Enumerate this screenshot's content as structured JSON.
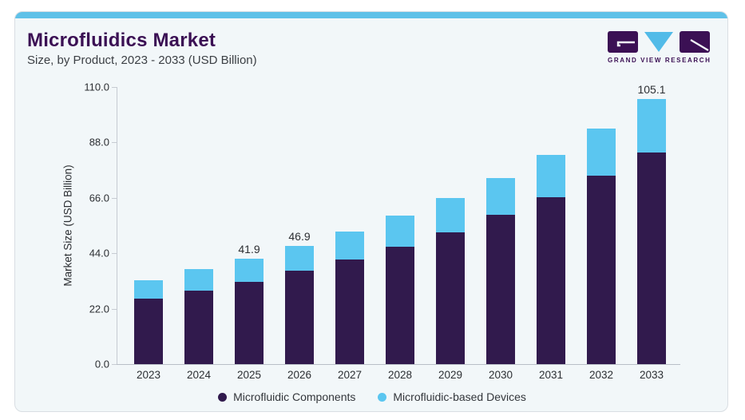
{
  "header": {
    "title": "Microfluidics Market",
    "subtitle": "Size, by Product, 2023 - 2033 (USD Billion)"
  },
  "brand": {
    "name": "GRAND VIEW RESEARCH",
    "icons": [
      "gvr-square-g-icon",
      "gvr-triangle-v-icon",
      "gvr-square-r-icon"
    ],
    "purple": "#3b1054",
    "cyan": "#52bbe8"
  },
  "chart_data": {
    "type": "bar",
    "stacked": true,
    "title": "Microfluidics Market Size, by Product, 2023 - 2033 (USD Billion)",
    "categories": [
      "2023",
      "2024",
      "2025",
      "2026",
      "2027",
      "2028",
      "2029",
      "2030",
      "2031",
      "2032",
      "2033"
    ],
    "series": [
      {
        "name": "Microfluidic Components",
        "color": "#311a4d",
        "values": [
          25.9,
          29.2,
          32.8,
          37.0,
          41.5,
          46.5,
          52.4,
          59.2,
          66.4,
          74.7,
          84.1
        ]
      },
      {
        "name": "Microfluidic-based Devices",
        "color": "#5bc6f0",
        "values": [
          7.4,
          8.4,
          9.1,
          9.9,
          11.1,
          12.4,
          13.6,
          14.8,
          16.6,
          18.8,
          21.0
        ]
      }
    ],
    "totals": [
      33.3,
      37.6,
      41.9,
      46.9,
      52.6,
      58.9,
      66.0,
      74.0,
      83.0,
      93.5,
      105.1
    ],
    "bar_total_labels": [
      "",
      "",
      "41.9",
      "46.9",
      "",
      "",
      "",
      "",
      "",
      "",
      "105.1"
    ],
    "ylabel": "Market Size (USD Billion)",
    "xlabel": "",
    "yticks": [
      0,
      22,
      44,
      66,
      88,
      110
    ],
    "ytick_labels": [
      "0.0",
      "22.0",
      "44.0",
      "66.0",
      "88.0",
      "110.0"
    ],
    "ylim": [
      0,
      110
    ],
    "grid": false,
    "legend_position": "bottom"
  },
  "colors": {
    "accent_strip": "#5fc1e8",
    "card_background": "#f2f7f9",
    "title_text": "#3b1054",
    "axis_line": "#c6cbd2"
  }
}
